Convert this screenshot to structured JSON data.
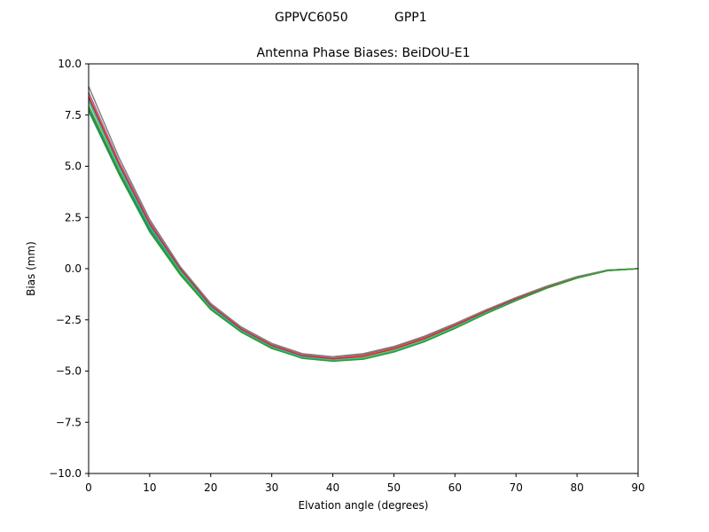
{
  "figure": {
    "suptitle_left": "GPPVC6050",
    "suptitle_right": "GPP1"
  },
  "chart_data": {
    "type": "line",
    "title": "Antenna Phase Biases: BeiDOU-E1",
    "xlabel": "Elvation angle (degrees)",
    "ylabel": "Bias (mm)",
    "xlim": [
      0,
      90
    ],
    "ylim": [
      -10,
      10
    ],
    "xticks": [
      0,
      10,
      20,
      30,
      40,
      50,
      60,
      70,
      80,
      90
    ],
    "yticks": [
      -10.0,
      -7.5,
      -5.0,
      -2.5,
      0.0,
      2.5,
      5.0,
      7.5,
      10.0
    ],
    "ytick_labels": [
      "−10.0",
      "−7.5",
      "−5.0",
      "−2.5",
      "0.0",
      "2.5",
      "5.0",
      "7.5",
      "10.0"
    ],
    "grid": false,
    "x": [
      0,
      5,
      10,
      15,
      20,
      25,
      30,
      35,
      40,
      45,
      50,
      55,
      60,
      65,
      70,
      75,
      80,
      85,
      90
    ],
    "series": [
      {
        "color": "#2ca02c",
        "values": [
          7.7,
          4.6,
          1.8,
          -0.3,
          -2.0,
          -3.1,
          -3.9,
          -4.35,
          -4.5,
          -4.4,
          -4.05,
          -3.55,
          -2.9,
          -2.2,
          -1.55,
          -0.95,
          -0.45,
          -0.1,
          0.0
        ]
      },
      {
        "color": "#1f77b4",
        "values": [
          7.8,
          4.7,
          1.9,
          -0.2,
          -1.95,
          -3.05,
          -3.85,
          -4.3,
          -4.45,
          -4.35,
          -4.0,
          -3.5,
          -2.85,
          -2.15,
          -1.5,
          -0.92,
          -0.43,
          -0.09,
          0.0
        ]
      },
      {
        "color": "#7f7f7f",
        "values": [
          8.3,
          5.0,
          2.1,
          -0.05,
          -1.85,
          -3.0,
          -3.8,
          -4.3,
          -4.45,
          -4.3,
          -3.95,
          -3.45,
          -2.8,
          -2.1,
          -1.48,
          -0.9,
          -0.42,
          -0.08,
          0.0
        ]
      },
      {
        "color": "#8c564b",
        "values": [
          8.6,
          5.2,
          2.3,
          0.05,
          -1.75,
          -2.9,
          -3.7,
          -4.2,
          -4.35,
          -4.2,
          -3.85,
          -3.35,
          -2.72,
          -2.05,
          -1.43,
          -0.87,
          -0.4,
          -0.07,
          0.0
        ]
      },
      {
        "color": "#e377c2",
        "values": [
          8.5,
          5.15,
          2.25,
          0.02,
          -1.78,
          -2.93,
          -3.73,
          -4.23,
          -4.38,
          -4.25,
          -3.9,
          -3.4,
          -2.77,
          -2.08,
          -1.46,
          -0.89,
          -0.41,
          -0.08,
          0.0
        ]
      },
      {
        "color": "#bcbd22",
        "values": [
          8.0,
          4.85,
          2.0,
          -0.15,
          -1.9,
          -3.0,
          -3.82,
          -4.28,
          -4.42,
          -4.32,
          -3.98,
          -3.48,
          -2.83,
          -2.13,
          -1.49,
          -0.91,
          -0.43,
          -0.09,
          0.0
        ]
      },
      {
        "color": "#17becf",
        "values": [
          8.2,
          4.95,
          2.05,
          -0.1,
          -1.88,
          -3.02,
          -3.83,
          -4.32,
          -4.48,
          -4.38,
          -4.02,
          -3.52,
          -2.87,
          -2.17,
          -1.52,
          -0.93,
          -0.44,
          -0.09,
          0.0
        ]
      },
      {
        "color": "#d62728",
        "values": [
          8.4,
          5.1,
          2.2,
          0.0,
          -1.8,
          -2.95,
          -3.75,
          -4.25,
          -4.4,
          -4.28,
          -3.92,
          -3.42,
          -2.78,
          -2.09,
          -1.47,
          -0.89,
          -0.41,
          -0.08,
          0.0
        ]
      },
      {
        "color": "#7f7f7f",
        "values": [
          8.9,
          5.4,
          2.4,
          0.1,
          -1.7,
          -2.85,
          -3.65,
          -4.15,
          -4.3,
          -4.15,
          -3.8,
          -3.3,
          -2.68,
          -2.02,
          -1.41,
          -0.86,
          -0.39,
          -0.07,
          0.0
        ]
      },
      {
        "color": "#2ca02c",
        "values": [
          7.9,
          4.75,
          1.95,
          -0.22,
          -1.97,
          -3.08,
          -3.88,
          -4.38,
          -4.52,
          -4.42,
          -4.07,
          -3.57,
          -2.92,
          -2.21,
          -1.56,
          -0.96,
          -0.46,
          -0.1,
          0.0
        ]
      }
    ]
  }
}
